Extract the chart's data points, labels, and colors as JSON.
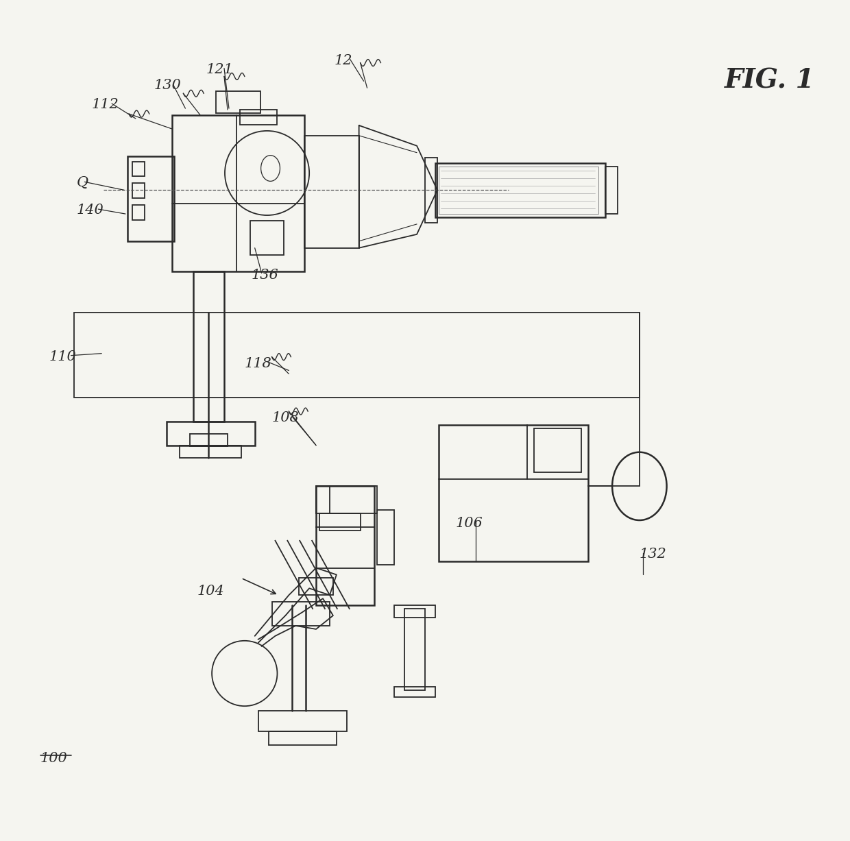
{
  "bg_color": "#f5f5f0",
  "line_color": "#2a2a2a",
  "label_color": "#3a3a3a",
  "fig_width": 12.4,
  "fig_height": 12.27,
  "lw": 1.3,
  "lw_thick": 1.8
}
